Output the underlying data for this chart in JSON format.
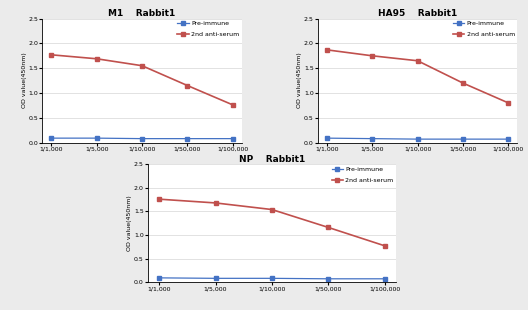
{
  "x_labels": [
    "1/1,000",
    "1/5,000",
    "1/10,000",
    "1/50,000",
    "1/100,000"
  ],
  "x_positions": [
    0,
    1,
    2,
    3,
    4
  ],
  "charts": [
    {
      "title": "M1    Rabbit1",
      "pre_immune": [
        0.09,
        0.09,
        0.08,
        0.08,
        0.08
      ],
      "anti_serum": [
        1.77,
        1.69,
        1.55,
        1.15,
        0.76
      ]
    },
    {
      "title": "HA95    Rabbit1",
      "pre_immune": [
        0.09,
        0.08,
        0.07,
        0.07,
        0.07
      ],
      "anti_serum": [
        1.87,
        1.75,
        1.65,
        1.2,
        0.8
      ]
    },
    {
      "title": "NP    Rabbit1",
      "pre_immune": [
        0.09,
        0.08,
        0.08,
        0.07,
        0.07
      ],
      "anti_serum": [
        1.76,
        1.68,
        1.54,
        1.16,
        0.77
      ]
    }
  ],
  "pre_immune_color": "#4472C4",
  "anti_serum_color": "#C0504D",
  "ylabel": "OD value(450nm)",
  "ylim": [
    0.0,
    2.5
  ],
  "yticks": [
    0.0,
    0.5,
    1.0,
    1.5,
    2.0,
    2.5
  ],
  "legend_pre": "Pre-immune",
  "legend_anti": "2nd anti-serum",
  "bg_color": "#ebebeb",
  "plot_bg_color": "#ffffff"
}
